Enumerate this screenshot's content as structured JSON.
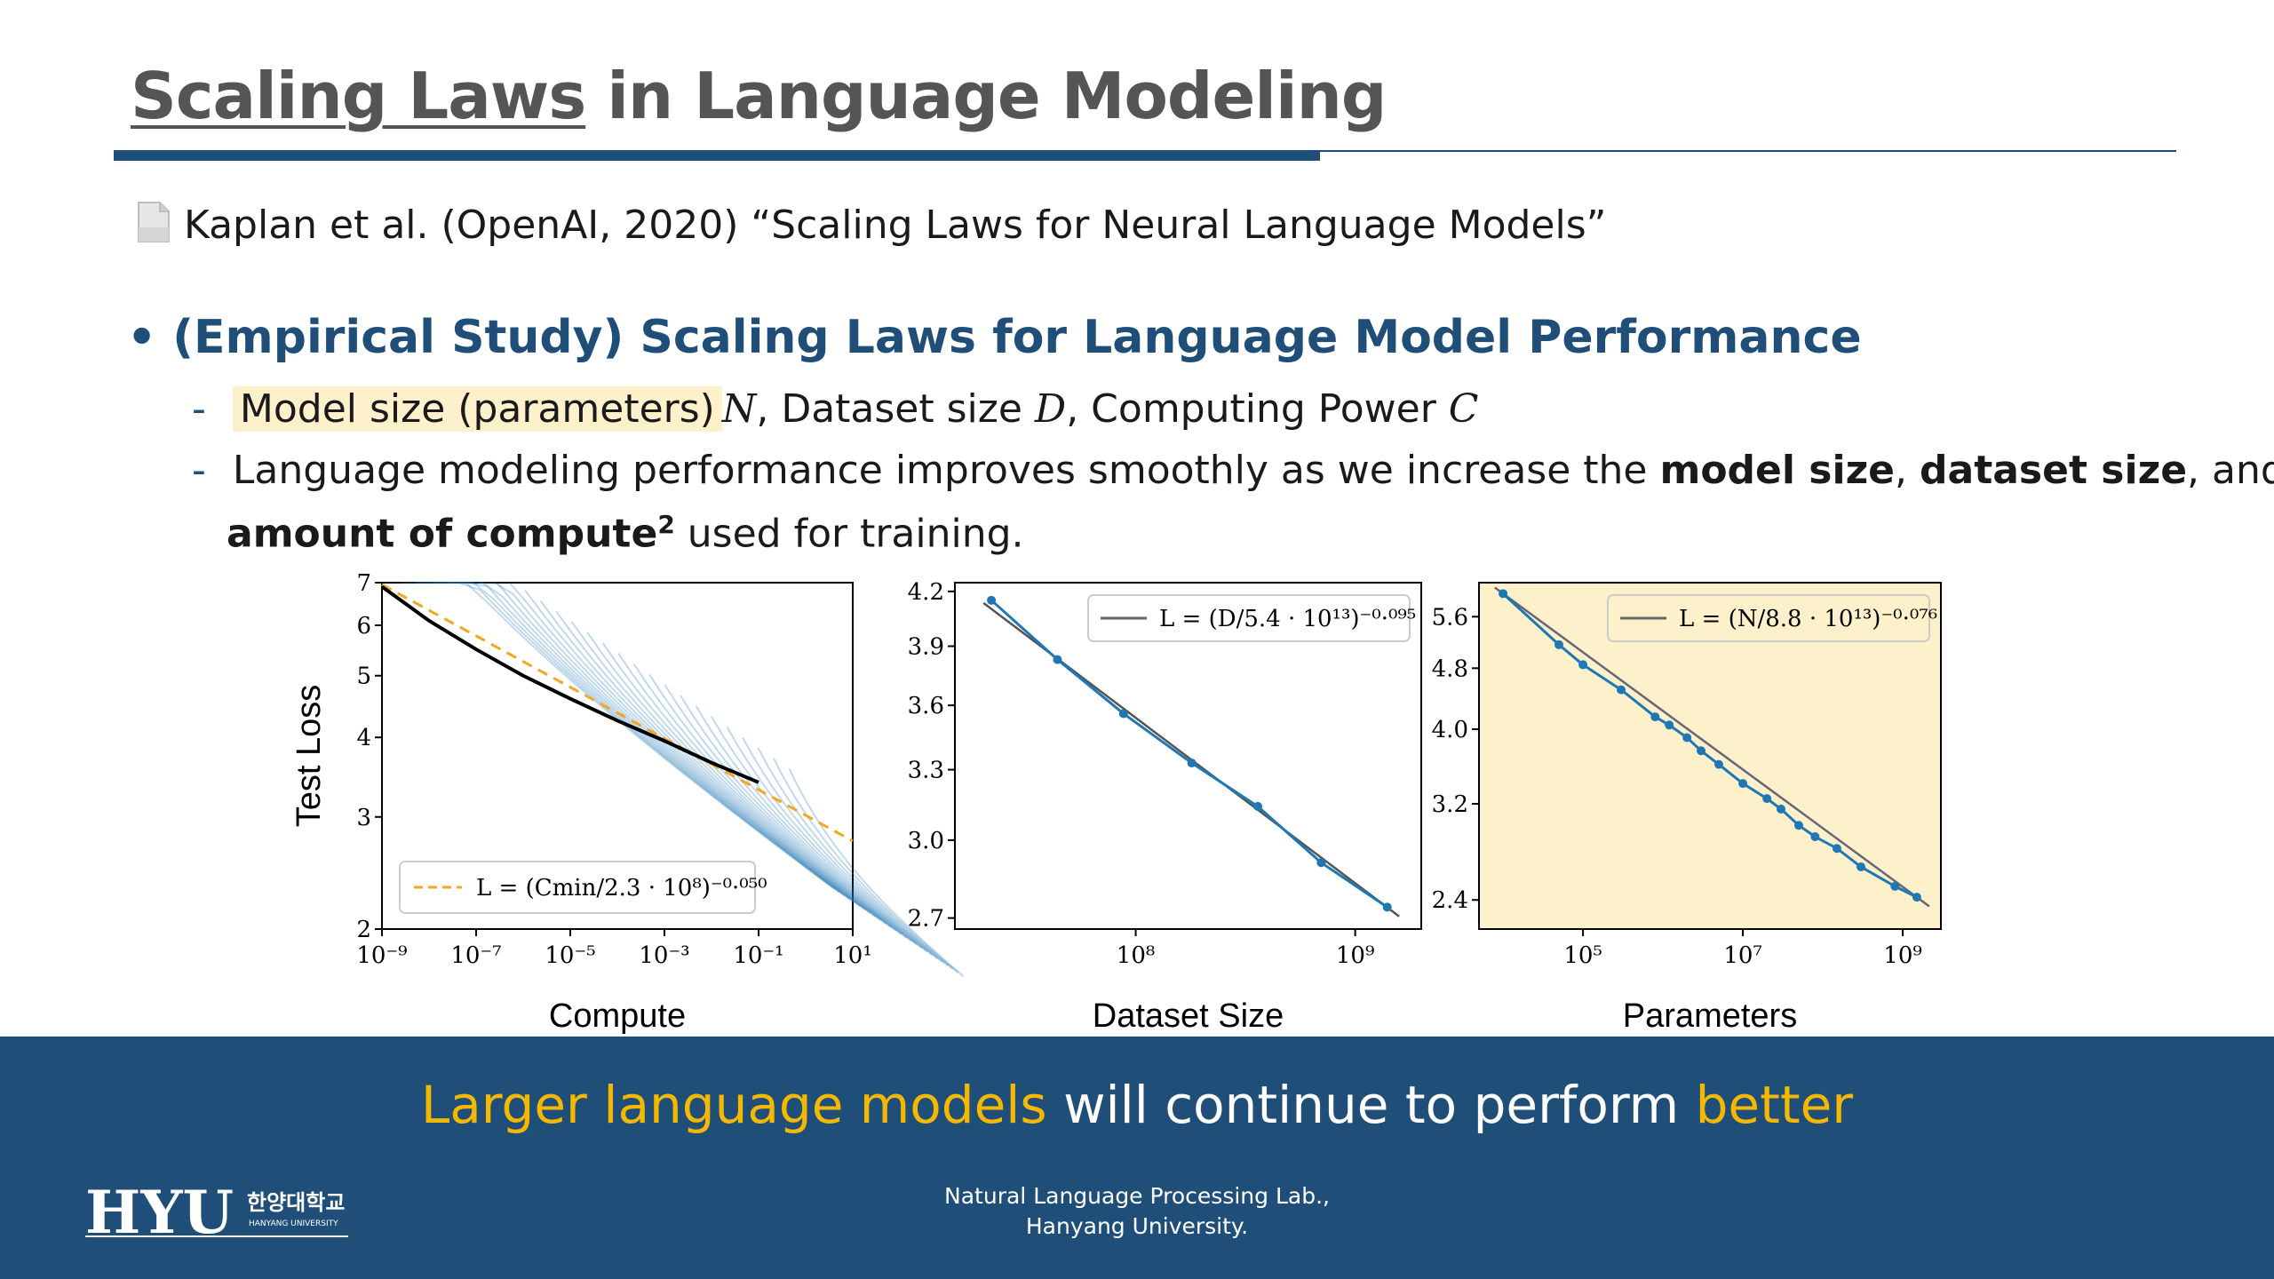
{
  "slide": {
    "title_underlined": "Scaling Laws",
    "title_rest": " in Language Modeling",
    "reference": "Kaplan et al. (OpenAI, 2020) “Scaling Laws for Neural Language Models”",
    "bullet": "(Empirical Study) Scaling Laws for Language Model Performance",
    "sub1": {
      "highlight": "Model size (parameters)",
      "var_n": "N",
      "mid1": ", Dataset size ",
      "var_d": "D",
      "mid2": ", Computing Power ",
      "var_c": "C"
    },
    "sub2": {
      "t1": "Language modeling performance improves smoothly as we increase the ",
      "b1": "model size",
      "t2": ", ",
      "b2": "dataset size",
      "t3": ", and",
      "b3": "amount of compute",
      "sup": "2",
      "t4": " used for training."
    },
    "tagline": {
      "a1": "Larger language models",
      "t1": " will continue to perform ",
      "a2": "better"
    },
    "footer": {
      "line1": "Natural Language Processing Lab.,",
      "line2": "Hanyang University."
    },
    "logo": {
      "main": "HYU",
      "korean": "한양대학교",
      "english": "HANYANG UNIVERSITY"
    }
  },
  "colors": {
    "brand": "#1f4e79",
    "accent": "#f5b800",
    "highlight": "#fdf1cc",
    "series": "#1f77b4",
    "fit_orange": "#f5a623",
    "panel_bg": "#fdf1cc"
  },
  "chart_data": [
    {
      "type": "line",
      "title": "",
      "xlabel": "Compute",
      "ylabel": "Test Loss",
      "xscale": "log",
      "yscale": "log",
      "xlim": [
        1e-09,
        10
      ],
      "ylim": [
        2,
        7
      ],
      "xticks": [
        "10⁻⁹",
        "10⁻⁷",
        "10⁻⁵",
        "10⁻³",
        "10⁻¹",
        "10¹"
      ],
      "yticks": [
        "2",
        "3",
        "4",
        "5",
        "6",
        "7"
      ],
      "legend": "L = (Cmin/2.3 · 10⁸)⁻⁰·⁰⁵⁰",
      "legend_position": "lower-left",
      "series": [
        {
          "x": [
            1e-09,
            1e-08,
            1e-07,
            1e-06,
            1e-05,
            0.0001,
            0.001,
            0.01,
            0.1,
            1
          ],
          "y": [
            6.9,
            6.1,
            5.5,
            5.0,
            4.6,
            4.25,
            3.95,
            3.65,
            3.4,
            3.15
          ]
        }
      ]
    },
    {
      "type": "line",
      "title": "",
      "xlabel": "Dataset Size",
      "ylabel": "",
      "xscale": "log",
      "yscale": "log",
      "ylim": [
        2.7,
        4.2
      ],
      "xticks": [
        "10⁸",
        "10⁹"
      ],
      "yticks": [
        "2.7",
        "3.0",
        "3.3",
        "3.6",
        "3.9",
        "4.2"
      ],
      "legend": "L = (D/5.4 · 10¹³)⁻⁰·⁰⁹⁵",
      "legend_position": "top-right",
      "series": [
        {
          "x": [
            22000000.0,
            44000000.0,
            88000000.0,
            180000000.0,
            360000000.0,
            700000000.0,
            1400000000.0
          ],
          "y": [
            4.15,
            3.83,
            3.56,
            3.33,
            3.14,
            2.91,
            2.74
          ]
        }
      ]
    },
    {
      "type": "line",
      "title": "",
      "xlabel": "Parameters",
      "ylabel": "",
      "xscale": "log",
      "yscale": "log",
      "ylim": [
        2.2,
        6.2
      ],
      "xticks": [
        "10⁵",
        "10⁷",
        "10⁹"
      ],
      "yticks": [
        "2.4",
        "3.2",
        "4.0",
        "4.8",
        "5.6"
      ],
      "legend": "L = (N/8.8 · 10¹³)⁻⁰·⁰⁷⁶",
      "legend_position": "top-right",
      "series": [
        {
          "x": [
            10000.0,
            50000.0,
            100000.0,
            300000.0,
            800000.0,
            1200000.0,
            2000000.0,
            3000000.0,
            5000000.0,
            10000000.0,
            20000000.0,
            30000000.0,
            50000000.0,
            80000000.0,
            150000000.0,
            300000000.0,
            800000000.0,
            1500000000.0
          ],
          "y": [
            6.0,
            5.15,
            4.85,
            4.5,
            4.15,
            4.05,
            3.9,
            3.75,
            3.6,
            3.4,
            3.25,
            3.15,
            3.0,
            2.9,
            2.8,
            2.65,
            2.5,
            2.42
          ]
        }
      ]
    }
  ]
}
